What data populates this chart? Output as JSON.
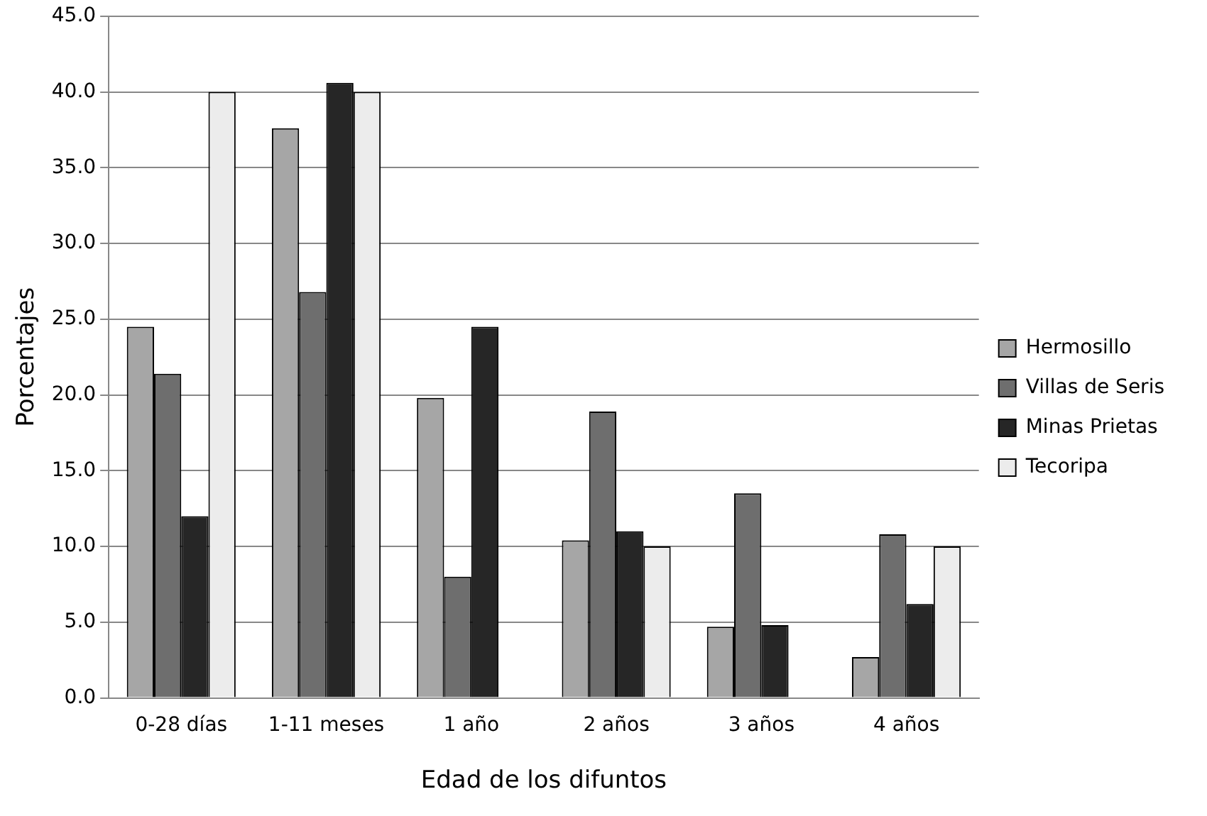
{
  "chart_data": {
    "type": "bar",
    "xlabel": "Edad de los difuntos",
    "ylabel": "Porcentajes",
    "categories": [
      "0-28 días",
      "1-11 meses",
      "1 año",
      "2 años",
      "3 años",
      "4 años"
    ],
    "series": [
      {
        "name": "Hermosillo",
        "color": "#a6a6a6",
        "values": [
          24.5,
          37.6,
          19.8,
          10.4,
          4.7,
          2.7
        ]
      },
      {
        "name": "Villas de Seris",
        "color": "#6e6e6e",
        "values": [
          21.4,
          26.8,
          8.0,
          18.9,
          13.5,
          10.8
        ]
      },
      {
        "name": "Minas Prietas",
        "color": "#262626",
        "values": [
          12.0,
          40.6,
          24.5,
          11.0,
          4.8,
          6.2
        ]
      },
      {
        "name": "Tecoripa",
        "color": "#ececec",
        "values": [
          40.0,
          40.0,
          null,
          10.0,
          null,
          10.0
        ]
      }
    ],
    "ylim": [
      0,
      45
    ],
    "yticks": [
      {
        "value": 0,
        "label": "0.0"
      },
      {
        "value": 5,
        "label": "5.0"
      },
      {
        "value": 10,
        "label": "10.0"
      },
      {
        "value": 15,
        "label": "15.0"
      },
      {
        "value": 20,
        "label": "20.0"
      },
      {
        "value": 25,
        "label": "25.0"
      },
      {
        "value": 30,
        "label": "30.0"
      },
      {
        "value": 35,
        "label": "35.0"
      },
      {
        "value": 40,
        "label": "40.0"
      },
      {
        "value": 45,
        "label": "45.0"
      }
    ],
    "grid": "y",
    "legend": "right"
  }
}
